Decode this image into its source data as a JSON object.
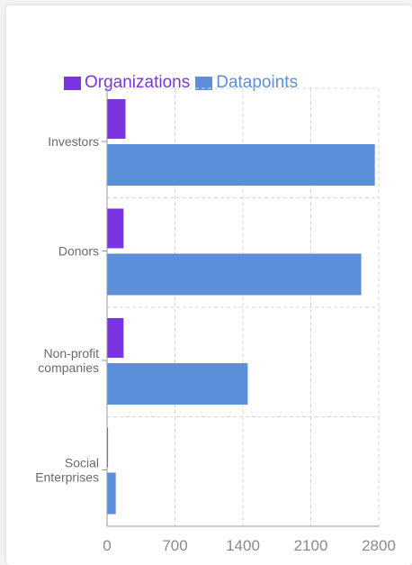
{
  "chart_data": {
    "type": "bar",
    "orientation": "horizontal",
    "categories": [
      "Investors",
      "Donors",
      "Non-profit companies",
      "Social Enterprises"
    ],
    "series": [
      {
        "name": "Organizations",
        "color": "#7b35e0",
        "values": [
          190,
          170,
          170,
          10
        ]
      },
      {
        "name": "Datapoints",
        "color": "#5b8fd9",
        "values": [
          2760,
          2620,
          1450,
          90
        ]
      }
    ],
    "xticks": [
      "0",
      "700",
      "1400",
      "2100",
      "2800"
    ],
    "xlim": [
      0,
      2800
    ],
    "grid": true,
    "legend": "top"
  }
}
